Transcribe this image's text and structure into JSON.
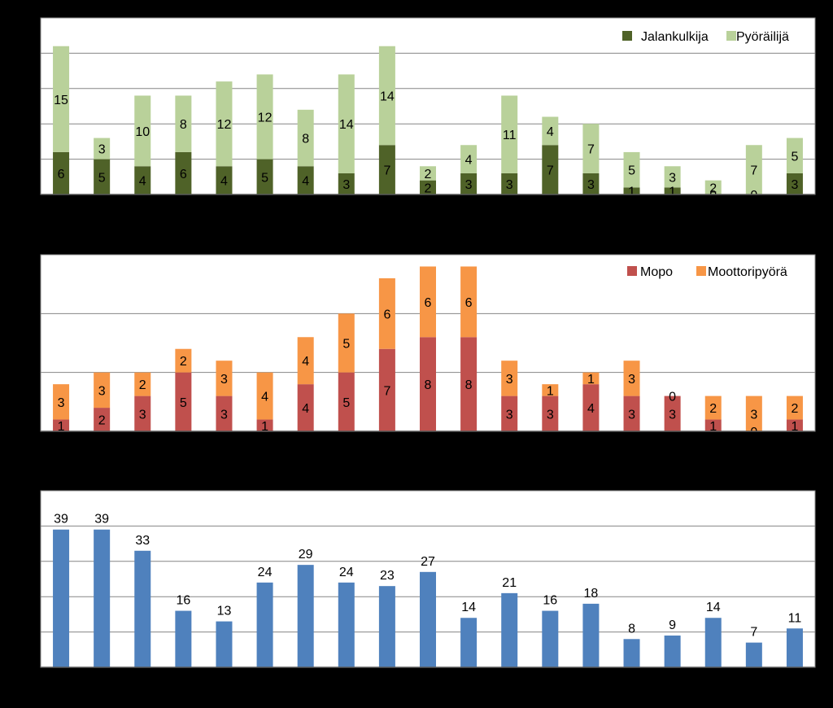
{
  "colors": {
    "background": "#000000",
    "plot_background": "#ffffff",
    "gridline": "#868686",
    "axis": "#000000",
    "label": "#000000",
    "jalankulkija": "#4f6228",
    "pyorailija": "#b9d19a",
    "mopo": "#c0504d",
    "moottoripyora": "#f79646",
    "total": "#4f81bd"
  },
  "chart_data": [
    {
      "type": "bar",
      "stacked": true,
      "title": "",
      "xlabel": "",
      "ylabel": "",
      "ylim": [
        0,
        25
      ],
      "gridlines": [
        0,
        5,
        10,
        15,
        20,
        25
      ],
      "legend_position": "top-right",
      "category_count": 19,
      "series": [
        {
          "name": "Jalankulkija",
          "color_key": "jalankulkija",
          "values": [
            6,
            5,
            4,
            6,
            4,
            5,
            4,
            3,
            7,
            2,
            3,
            3,
            7,
            3,
            1,
            1,
            0,
            0,
            3
          ]
        },
        {
          "name": "Pyöräilijä",
          "color_key": "pyorailija",
          "values": [
            15,
            3,
            10,
            8,
            12,
            12,
            8,
            14,
            14,
            2,
            4,
            11,
            4,
            7,
            5,
            3,
            2,
            7,
            5
          ]
        }
      ]
    },
    {
      "type": "bar",
      "stacked": true,
      "title": "",
      "xlabel": "",
      "ylabel": "",
      "ylim": [
        0,
        15
      ],
      "gridlines": [
        0,
        5,
        10,
        15
      ],
      "legend_position": "top-right",
      "category_count": 19,
      "series": [
        {
          "name": "Mopo",
          "color_key": "mopo",
          "values": [
            1,
            2,
            3,
            5,
            3,
            1,
            4,
            5,
            7,
            8,
            8,
            3,
            3,
            4,
            3,
            3,
            1,
            0,
            1
          ]
        },
        {
          "name": "Moottoripyörä",
          "color_key": "moottoripyora",
          "values": [
            3,
            3,
            2,
            2,
            3,
            4,
            4,
            5,
            6,
            6,
            6,
            3,
            1,
            1,
            3,
            0,
            2,
            3,
            2
          ]
        }
      ]
    },
    {
      "type": "bar",
      "stacked": false,
      "title": "",
      "xlabel": "",
      "ylabel": "",
      "ylim": [
        0,
        50
      ],
      "gridlines": [
        0,
        10,
        20,
        30,
        40,
        50
      ],
      "category_count": 19,
      "series": [
        {
          "color_key": "total",
          "values": [
            39,
            39,
            33,
            16,
            13,
            24,
            29,
            24,
            23,
            27,
            14,
            21,
            16,
            18,
            8,
            9,
            14,
            7,
            11
          ]
        }
      ]
    }
  ]
}
